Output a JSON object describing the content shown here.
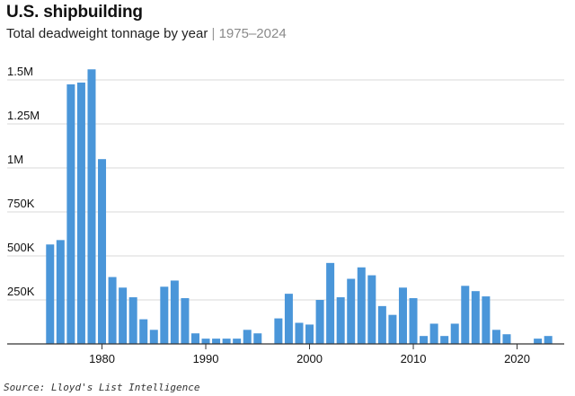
{
  "header": {
    "title": "U.S. shipbuilding",
    "subtitle": "Total deadweight tonnage by year",
    "separator": "|",
    "range": "1975–2024"
  },
  "source": "Source: Lloyd's List Intelligence",
  "colors": {
    "bar": "#4a96d9",
    "grid": "#d9d9d9",
    "axis": "#333333",
    "text": "#111111"
  },
  "chart_data": {
    "type": "bar",
    "title": "U.S. shipbuilding",
    "subtitle": "Total deadweight tonnage by year",
    "xlabel": "",
    "ylabel": "",
    "ylim": [
      0,
      1500000
    ],
    "grid": true,
    "yticks": [
      {
        "value": 250000,
        "label": "250K"
      },
      {
        "value": 500000,
        "label": "500K"
      },
      {
        "value": 750000,
        "label": "750K"
      },
      {
        "value": 1000000,
        "label": "1M"
      },
      {
        "value": 1250000,
        "label": "1.25M"
      },
      {
        "value": 1500000,
        "label": "1.5M"
      }
    ],
    "xticks": [
      {
        "value": 1980,
        "label": "1980"
      },
      {
        "value": 1990,
        "label": "1990"
      },
      {
        "value": 2000,
        "label": "2000"
      },
      {
        "value": 2010,
        "label": "2010"
      },
      {
        "value": 2020,
        "label": "2020"
      }
    ],
    "categories": [
      1975,
      1976,
      1977,
      1978,
      1979,
      1980,
      1981,
      1982,
      1983,
      1984,
      1985,
      1986,
      1987,
      1988,
      1989,
      1990,
      1991,
      1992,
      1993,
      1994,
      1995,
      1996,
      1997,
      1998,
      1999,
      2000,
      2001,
      2002,
      2003,
      2004,
      2005,
      2006,
      2007,
      2008,
      2009,
      2010,
      2011,
      2012,
      2013,
      2014,
      2015,
      2016,
      2017,
      2018,
      2019,
      2020,
      2021,
      2022,
      2023,
      2024
    ],
    "values": [
      565000,
      590000,
      1475000,
      1485000,
      1560000,
      1050000,
      380000,
      320000,
      265000,
      140000,
      80000,
      325000,
      360000,
      260000,
      60000,
      30000,
      30000,
      30000,
      30000,
      80000,
      60000,
      0,
      145000,
      285000,
      120000,
      110000,
      250000,
      460000,
      265000,
      370000,
      435000,
      390000,
      215000,
      165000,
      320000,
      260000,
      45000,
      115000,
      45000,
      115000,
      330000,
      300000,
      270000,
      80000,
      55000,
      0,
      0,
      30000,
      45000,
      0
    ]
  }
}
